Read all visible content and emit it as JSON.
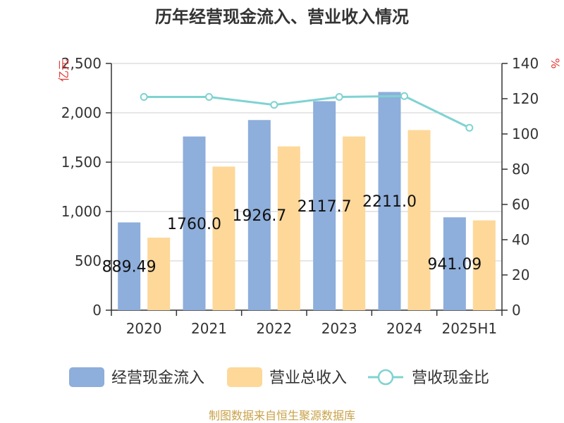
{
  "chart_data": {
    "type": "bar",
    "title": "历年经营现金流入、营业收入情况",
    "categories": [
      "2020",
      "2021",
      "2022",
      "2023",
      "2024",
      "2025H1"
    ],
    "ylabel_left": "亿元",
    "ylabel_right": "%",
    "ylim_left": [
      0,
      2500
    ],
    "ylim_right": [
      0,
      140
    ],
    "yticks_left": [
      "0",
      "500",
      "1,000",
      "1,500",
      "2,000",
      "2,500"
    ],
    "yticks_right": [
      "0",
      "20",
      "40",
      "60",
      "80",
      "100",
      "120",
      "140"
    ],
    "grid": true,
    "legend_position": "bottom",
    "series": [
      {
        "name": "经营现金流入",
        "kind": "bar",
        "axis": "left",
        "color": "#8eaedb",
        "values": [
          889.49,
          1760.0,
          1926.7,
          2117.7,
          2211.0,
          941.09
        ],
        "labels": [
          "889.49",
          "1760.0",
          "1926.7",
          "2117.7",
          "2211.0",
          "941.09"
        ]
      },
      {
        "name": "营业总收入",
        "kind": "bar",
        "axis": "left",
        "color": "#fdd899",
        "values": [
          735,
          1455,
          1660,
          1760,
          1825,
          910
        ]
      },
      {
        "name": "营收现金比",
        "kind": "line",
        "axis": "right",
        "color": "#7fd3d1",
        "values": [
          121,
          121,
          116.5,
          121,
          121.5,
          103.5
        ]
      }
    ]
  },
  "source_text": "制图数据来自恒生聚源数据库"
}
